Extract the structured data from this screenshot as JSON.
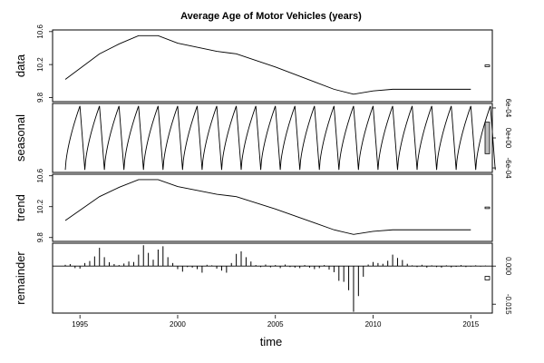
{
  "chart_data": {
    "type": "line",
    "title": "Average Age of Motor Vehicles (years)",
    "xlabel": "time",
    "xlim": [
      1993.6,
      2016.1
    ],
    "x_ticks": [
      1995,
      2000,
      2005,
      2010,
      2015
    ],
    "panels": [
      {
        "name": "data",
        "ylabel": "data",
        "ylim": [
          9.75,
          10.62
        ],
        "y_ticks": [
          9.8,
          10.2,
          10.6
        ],
        "right_ticks": [],
        "scale_bar": {
          "height": 0.02,
          "filled": false
        },
        "series": {
          "kind": "line",
          "x": [
            1994.25,
            1996.0,
            1997.0,
            1998.0,
            1999.0,
            2000.0,
            2002.0,
            2003.0,
            2005.0,
            2007.0,
            2008.0,
            2009.0,
            2010.0,
            2011.0,
            2012.0,
            2015.0
          ],
          "y": [
            10.02,
            10.33,
            10.45,
            10.55,
            10.55,
            10.46,
            10.36,
            10.33,
            10.17,
            9.99,
            9.9,
            9.84,
            9.88,
            9.9,
            9.9,
            9.9
          ]
        }
      },
      {
        "name": "seasonal",
        "ylabel": "seasonal",
        "ylim": [
          -0.00069,
          0.00069
        ],
        "y_ticks": [],
        "right_ticks": [
          {
            "value": 0.0006,
            "label": "6e-04"
          },
          {
            "value": 0.0,
            "label": "0e+00"
          },
          {
            "value": -0.0006,
            "label": "-6e-04"
          }
        ],
        "scale_bar": {
          "height": 0.00063,
          "filled": true
        },
        "series": {
          "kind": "seasonal",
          "period": 1,
          "start": 1994.25,
          "end": 2015.75,
          "low": -0.00064,
          "high": 0.00064
        }
      },
      {
        "name": "trend",
        "ylabel": "trend",
        "ylim": [
          9.75,
          10.62
        ],
        "y_ticks": [
          9.8,
          10.2,
          10.6
        ],
        "right_ticks": [],
        "scale_bar": {
          "height": 0.02,
          "filled": false
        },
        "series": {
          "kind": "line",
          "x": [
            1994.25,
            1996.0,
            1997.0,
            1998.0,
            1999.0,
            2000.0,
            2002.0,
            2003.0,
            2005.0,
            2007.0,
            2008.0,
            2009.0,
            2010.0,
            2011.0,
            2012.0,
            2015.0
          ],
          "y": [
            10.02,
            10.33,
            10.45,
            10.55,
            10.55,
            10.46,
            10.36,
            10.33,
            10.17,
            9.99,
            9.9,
            9.84,
            9.88,
            9.9,
            9.9,
            9.9
          ]
        }
      },
      {
        "name": "remainder",
        "ylabel": "remainder",
        "ylim": [
          -0.0185,
          0.009
        ],
        "y_ticks": [],
        "right_ticks": [
          {
            "value": 0.0,
            "label": "0.000"
          },
          {
            "value": -0.015,
            "label": "-0.015"
          }
        ],
        "scale_bar": {
          "height": 0.0014,
          "filled": false
        },
        "series": {
          "kind": "bars",
          "x": [
            1994.25,
            1994.5,
            1994.75,
            1995.0,
            1995.25,
            1995.5,
            1995.75,
            1996.0,
            1996.25,
            1996.5,
            1996.75,
            1997.0,
            1997.25,
            1997.5,
            1997.75,
            1998.0,
            1998.25,
            1998.5,
            1998.75,
            1999.0,
            1999.25,
            1999.5,
            1999.75,
            2000.0,
            2000.25,
            2000.5,
            2000.75,
            2001.0,
            2001.25,
            2001.5,
            2001.75,
            2002.0,
            2002.25,
            2002.5,
            2002.75,
            2003.0,
            2003.25,
            2003.5,
            2003.75,
            2004.0,
            2004.25,
            2004.5,
            2004.75,
            2005.0,
            2005.25,
            2005.5,
            2005.75,
            2006.0,
            2006.25,
            2006.5,
            2006.75,
            2007.0,
            2007.25,
            2007.5,
            2007.75,
            2008.0,
            2008.25,
            2008.5,
            2008.75,
            2009.0,
            2009.25,
            2009.5,
            2009.75,
            2010.0,
            2010.25,
            2010.5,
            2010.75,
            2011.0,
            2011.25,
            2011.5,
            2011.75,
            2012.0,
            2012.25,
            2012.5,
            2012.75,
            2013.0,
            2013.25,
            2013.5,
            2013.75,
            2014.0,
            2014.25,
            2014.5,
            2014.75,
            2015.0,
            2015.25,
            2015.5,
            2015.75
          ],
          "y": [
            0.0005,
            0.0008,
            -0.0008,
            -0.001,
            0.0012,
            0.002,
            0.0038,
            0.0072,
            0.0035,
            0.0015,
            0.0008,
            0.0004,
            0.001,
            0.0018,
            0.0016,
            0.0045,
            0.0082,
            0.0052,
            0.0025,
            0.0065,
            0.0078,
            0.0035,
            0.0012,
            -0.0012,
            -0.0022,
            -0.0004,
            -0.0006,
            -0.0012,
            -0.0026,
            0.0005,
            0.0003,
            -0.001,
            -0.0018,
            -0.0026,
            0.0012,
            0.0048,
            0.0058,
            0.0035,
            0.0018,
            0.0004,
            -0.0004,
            0.0006,
            -0.0005,
            0.0004,
            -0.0008,
            0.0006,
            -0.0004,
            -0.0006,
            -0.0008,
            0.0004,
            -0.0006,
            -0.0012,
            -0.0008,
            0.0004,
            -0.0014,
            -0.0024,
            -0.0058,
            -0.0062,
            -0.0095,
            -0.018,
            -0.0118,
            -0.0042,
            0.0006,
            0.0016,
            0.0012,
            0.0009,
            0.0021,
            0.0045,
            0.0032,
            0.0024,
            0.0009,
            0.0003,
            -0.0004,
            0.0005,
            -0.0006,
            0.0003,
            -0.0004,
            -0.0006,
            0.0003,
            -0.0005,
            -0.0003,
            0.0004,
            -0.0004,
            -0.0002,
            0.0003,
            -0.0002,
            0.0002
          ]
        }
      }
    ]
  }
}
